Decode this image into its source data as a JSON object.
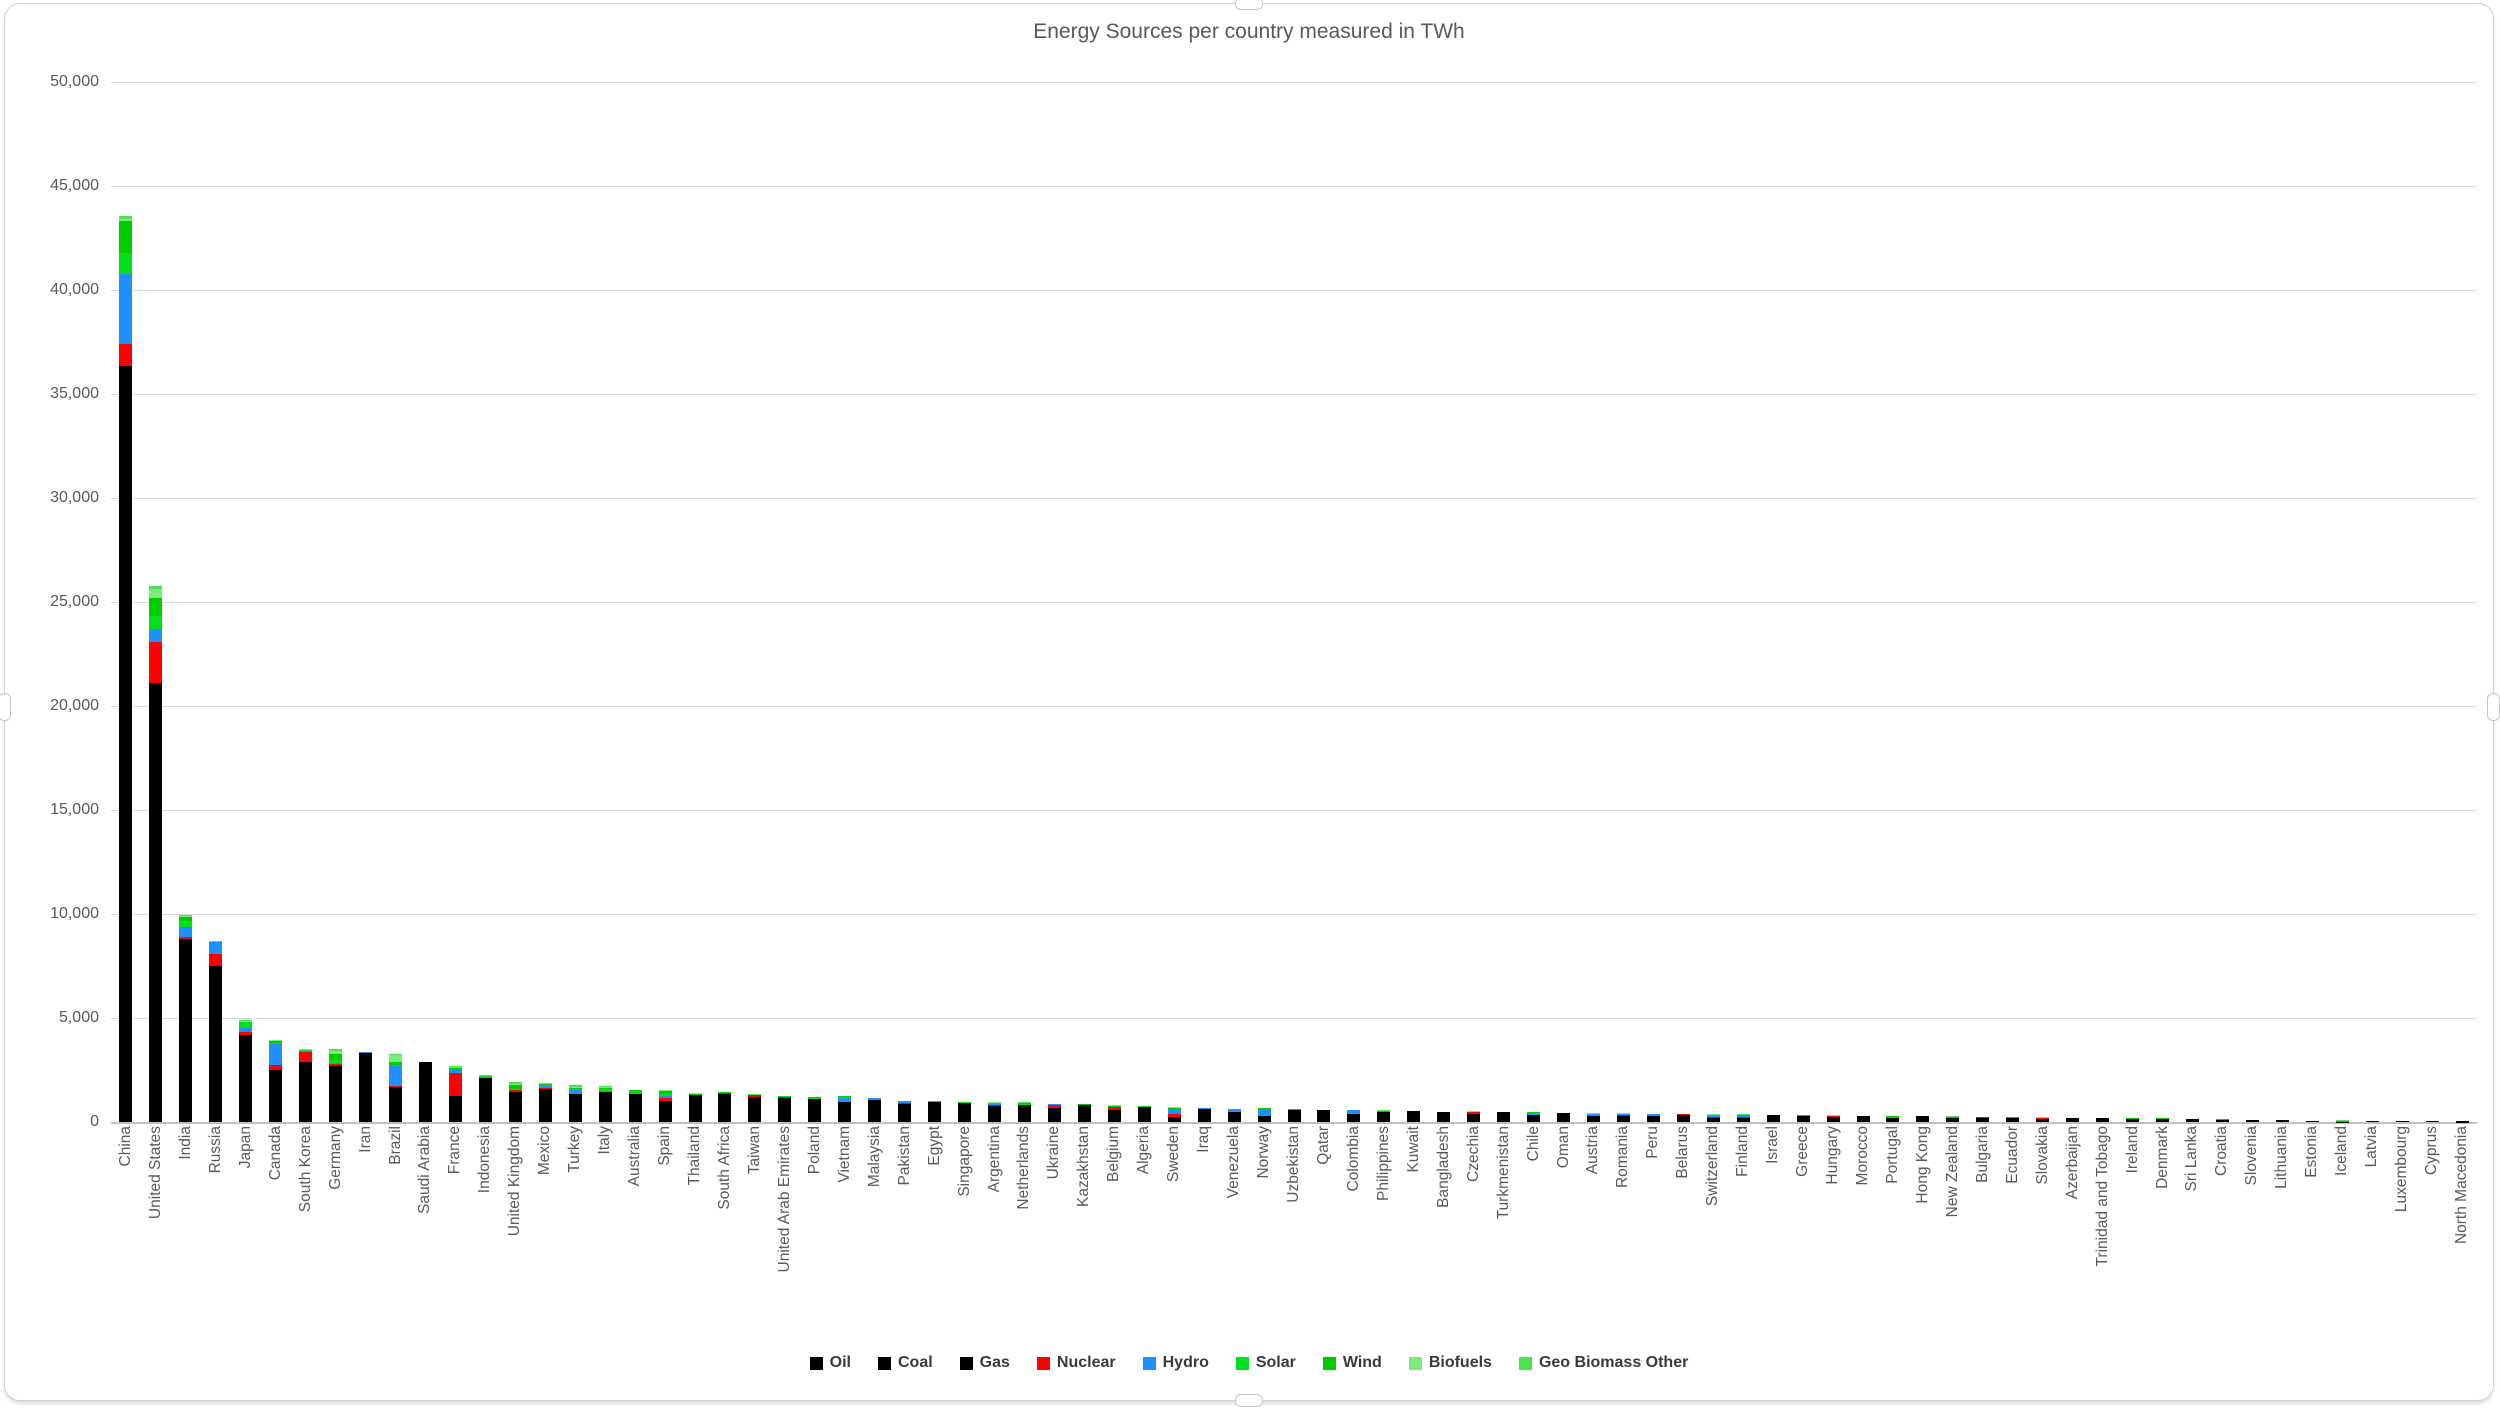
{
  "chart_data": {
    "type": "bar",
    "stacked": true,
    "title": "Energy Sources per country measured in TWh",
    "xlabel": "",
    "ylabel": "",
    "ylim": [
      0,
      50000
    ],
    "ytick_step": 5000,
    "ytick_labels": [
      "0",
      "5,000",
      "10,000",
      "15,000",
      "20,000",
      "25,000",
      "30,000",
      "35,000",
      "40,000",
      "45,000",
      "50,000"
    ],
    "grid": "horizontal",
    "legend_position": "bottom",
    "categories": [
      "China",
      "United States",
      "India",
      "Russia",
      "Japan",
      "Canada",
      "South Korea",
      "Germany",
      "Iran",
      "Brazil",
      "Saudi Arabia",
      "France",
      "Indonesia",
      "United Kingdom",
      "Mexico",
      "Turkey",
      "Italy",
      "Australia",
      "Spain",
      "Thailand",
      "South Africa",
      "Taiwan",
      "United Arab Emirates",
      "Poland",
      "Vietnam",
      "Malaysia",
      "Pakistan",
      "Egypt",
      "Singapore",
      "Argentina",
      "Netherlands",
      "Ukraine",
      "Kazakhstan",
      "Belgium",
      "Algeria",
      "Sweden",
      "Iraq",
      "Venezuela",
      "Norway",
      "Uzbekistan",
      "Qatar",
      "Colombia",
      "Philippines",
      "Kuwait",
      "Bangladesh",
      "Czechia",
      "Turkmenistan",
      "Chile",
      "Oman",
      "Austria",
      "Romania",
      "Peru",
      "Belarus",
      "Switzerland",
      "Finland",
      "Israel",
      "Greece",
      "Hungary",
      "Morocco",
      "Portugal",
      "Hong Kong",
      "New Zealand",
      "Bulgaria",
      "Ecuador",
      "Slovakia",
      "Azerbaijan",
      "Trinidad and Tobago",
      "Ireland",
      "Denmark",
      "Sri Lanka",
      "Croatia",
      "Slovenia",
      "Lithuania",
      "Estonia",
      "Iceland",
      "Latvia",
      "Luxembourg",
      "Cyprus",
      "North Macedonia"
    ],
    "series": [
      {
        "name": "Oil",
        "color": "#000000",
        "values": [
          8300,
          9900,
          2900,
          2000,
          1900,
          1250,
          1440,
          1200,
          1100,
          1250,
          1800,
          760,
          880,
          700,
          950,
          560,
          680,
          560,
          640,
          640,
          320,
          500,
          500,
          390,
          270,
          430,
          420,
          400,
          770,
          330,
          430,
          230,
          180,
          360,
          230,
          210,
          480,
          330,
          200,
          90,
          150,
          250,
          250,
          310,
          160,
          190,
          130,
          210,
          180,
          160,
          140,
          180,
          130,
          130,
          130,
          130,
          170,
          110,
          200,
          150,
          170,
          110,
          100,
          160,
          80,
          60,
          35,
          90,
          90,
          100,
          75,
          55,
          75,
          30,
          20,
          35,
          35,
          45,
          20
        ]
      },
      {
        "name": "Coal",
        "color": "#000000",
        "values": [
          24300,
          2700,
          5300,
          1000,
          1300,
          130,
          870,
          640,
          30,
          150,
          5,
          60,
          930,
          60,
          120,
          450,
          120,
          450,
          45,
          220,
          960,
          450,
          30,
          500,
          560,
          370,
          240,
          10,
          5,
          15,
          80,
          190,
          450,
          40,
          5,
          25,
          0,
          5,
          15,
          50,
          0,
          60,
          190,
          5,
          60,
          140,
          0,
          80,
          5,
          30,
          60,
          15,
          5,
          0,
          30,
          70,
          30,
          25,
          70,
          0,
          60,
          20,
          50,
          0,
          25,
          0,
          0,
          10,
          15,
          25,
          5,
          15,
          0,
          25,
          5,
          0,
          0,
          0,
          10
        ]
      },
      {
        "name": "Gas",
        "color": "#000000",
        "values": [
          3750,
          8500,
          600,
          4500,
          1000,
          1130,
          580,
          850,
          2180,
          280,
          1090,
          430,
          310,
          690,
          520,
          330,
          620,
          330,
          330,
          440,
          90,
          270,
          620,
          210,
          120,
          280,
          220,
          530,
          160,
          430,
          290,
          240,
          180,
          200,
          510,
          15,
          170,
          170,
          60,
          450,
          410,
          100,
          35,
          210,
          280,
          70,
          350,
          60,
          250,
          80,
          100,
          105,
          190,
          55,
          20,
          120,
          70,
          100,
          10,
          50,
          50,
          40,
          25,
          15,
          50,
          130,
          145,
          50,
          20,
          0,
          25,
          10,
          15,
          5,
          0,
          10,
          10,
          0,
          5
        ]
      },
      {
        "name": "Nuclear",
        "color": "#FF0000",
        "values": [
          1050,
          2000,
          120,
          590,
          140,
          240,
          500,
          90,
          15,
          35,
          0,
          1100,
          0,
          100,
          30,
          0,
          0,
          0,
          150,
          0,
          25,
          60,
          50,
          0,
          0,
          0,
          40,
          0,
          0,
          25,
          10,
          170,
          0,
          120,
          0,
          135,
          0,
          0,
          0,
          0,
          0,
          0,
          0,
          0,
          0,
          85,
          0,
          0,
          0,
          0,
          30,
          0,
          40,
          65,
          65,
          0,
          0,
          45,
          0,
          0,
          0,
          0,
          45,
          0,
          40,
          0,
          0,
          0,
          0,
          0,
          0,
          15,
          0,
          0,
          0,
          0,
          0,
          0,
          0
        ]
      },
      {
        "name": "Hydro",
        "color": "#1E90FF",
        "values": [
          3370,
          625,
          480,
          560,
          200,
          1020,
          10,
          45,
          45,
          1000,
          0,
          130,
          65,
          15,
          90,
          180,
          75,
          45,
          75,
          15,
          10,
          10,
          0,
          5,
          200,
          80,
          90,
          35,
          0,
          90,
          0,
          25,
          25,
          5,
          0,
          180,
          10,
          140,
          360,
          15,
          0,
          150,
          25,
          0,
          5,
          5,
          0,
          55,
          0,
          105,
          45,
          85,
          0,
          95,
          40,
          0,
          15,
          0,
          5,
          25,
          0,
          65,
          10,
          65,
          10,
          5,
          0,
          5,
          0,
          15,
          20,
          15,
          5,
          0,
          35,
          10,
          0,
          0,
          5
        ]
      },
      {
        "name": "Solar",
        "color": "#00E01E",
        "values": [
          1000,
          600,
          260,
          10,
          250,
          15,
          75,
          150,
          5,
          50,
          10,
          40,
          5,
          35,
          60,
          50,
          70,
          85,
          105,
          25,
          15,
          20,
          30,
          30,
          60,
          5,
          5,
          15,
          5,
          10,
          45,
          15,
          5,
          20,
          5,
          10,
          5,
          0,
          0,
          5,
          0,
          5,
          5,
          0,
          0,
          10,
          0,
          45,
          5,
          10,
          10,
          5,
          0,
          10,
          5,
          25,
          25,
          20,
          5,
          15,
          0,
          5,
          10,
          0,
          5,
          0,
          0,
          0,
          10,
          5,
          0,
          5,
          5,
          5,
          0,
          0,
          0,
          5,
          0
        ]
      },
      {
        "name": "Wind",
        "color": "#00CD00",
        "values": [
          1550,
          850,
          200,
          10,
          25,
          95,
          10,
          320,
          5,
          130,
          5,
          100,
          5,
          180,
          60,
          90,
          55,
          70,
          160,
          5,
          20,
          10,
          0,
          50,
          20,
          0,
          5,
          15,
          0,
          35,
          60,
          5,
          5,
          35,
          0,
          90,
          0,
          0,
          30,
          0,
          0,
          0,
          5,
          0,
          0,
          0,
          0,
          25,
          0,
          20,
          20,
          10,
          0,
          0,
          35,
          0,
          30,
          5,
          15,
          35,
          0,
          10,
          5,
          0,
          0,
          0,
          0,
          30,
          40,
          5,
          5,
          0,
          10,
          5,
          0,
          0,
          0,
          0,
          0
        ]
      },
      {
        "name": "Biofuels",
        "color": "#7BEB7B",
        "values": [
          120,
          450,
          60,
          10,
          30,
          45,
          25,
          100,
          0,
          350,
          0,
          50,
          25,
          60,
          30,
          10,
          60,
          10,
          40,
          60,
          0,
          5,
          0,
          30,
          5,
          5,
          0,
          0,
          0,
          25,
          25,
          10,
          0,
          20,
          0,
          50,
          0,
          0,
          5,
          0,
          0,
          10,
          5,
          0,
          0,
          20,
          0,
          15,
          0,
          25,
          10,
          5,
          5,
          10,
          35,
          0,
          5,
          15,
          0,
          15,
          0,
          0,
          5,
          5,
          10,
          0,
          0,
          5,
          15,
          0,
          5,
          0,
          5,
          5,
          0,
          5,
          5,
          0,
          0
        ]
      },
      {
        "name": "Geo Biomass Other",
        "color": "#4EE24E",
        "values": [
          130,
          130,
          20,
          10,
          60,
          10,
          15,
          130,
          0,
          25,
          0,
          40,
          60,
          90,
          40,
          90,
          60,
          5,
          20,
          5,
          5,
          5,
          0,
          10,
          0,
          0,
          0,
          0,
          5,
          0,
          15,
          0,
          0,
          10,
          0,
          20,
          0,
          0,
          0,
          0,
          0,
          0,
          55,
          0,
          0,
          5,
          0,
          0,
          0,
          10,
          0,
          0,
          0,
          5,
          10,
          0,
          0,
          0,
          0,
          5,
          0,
          50,
          0,
          0,
          0,
          0,
          0,
          0,
          0,
          0,
          0,
          0,
          0,
          0,
          25,
          0,
          0,
          0,
          0
        ]
      }
    ]
  }
}
